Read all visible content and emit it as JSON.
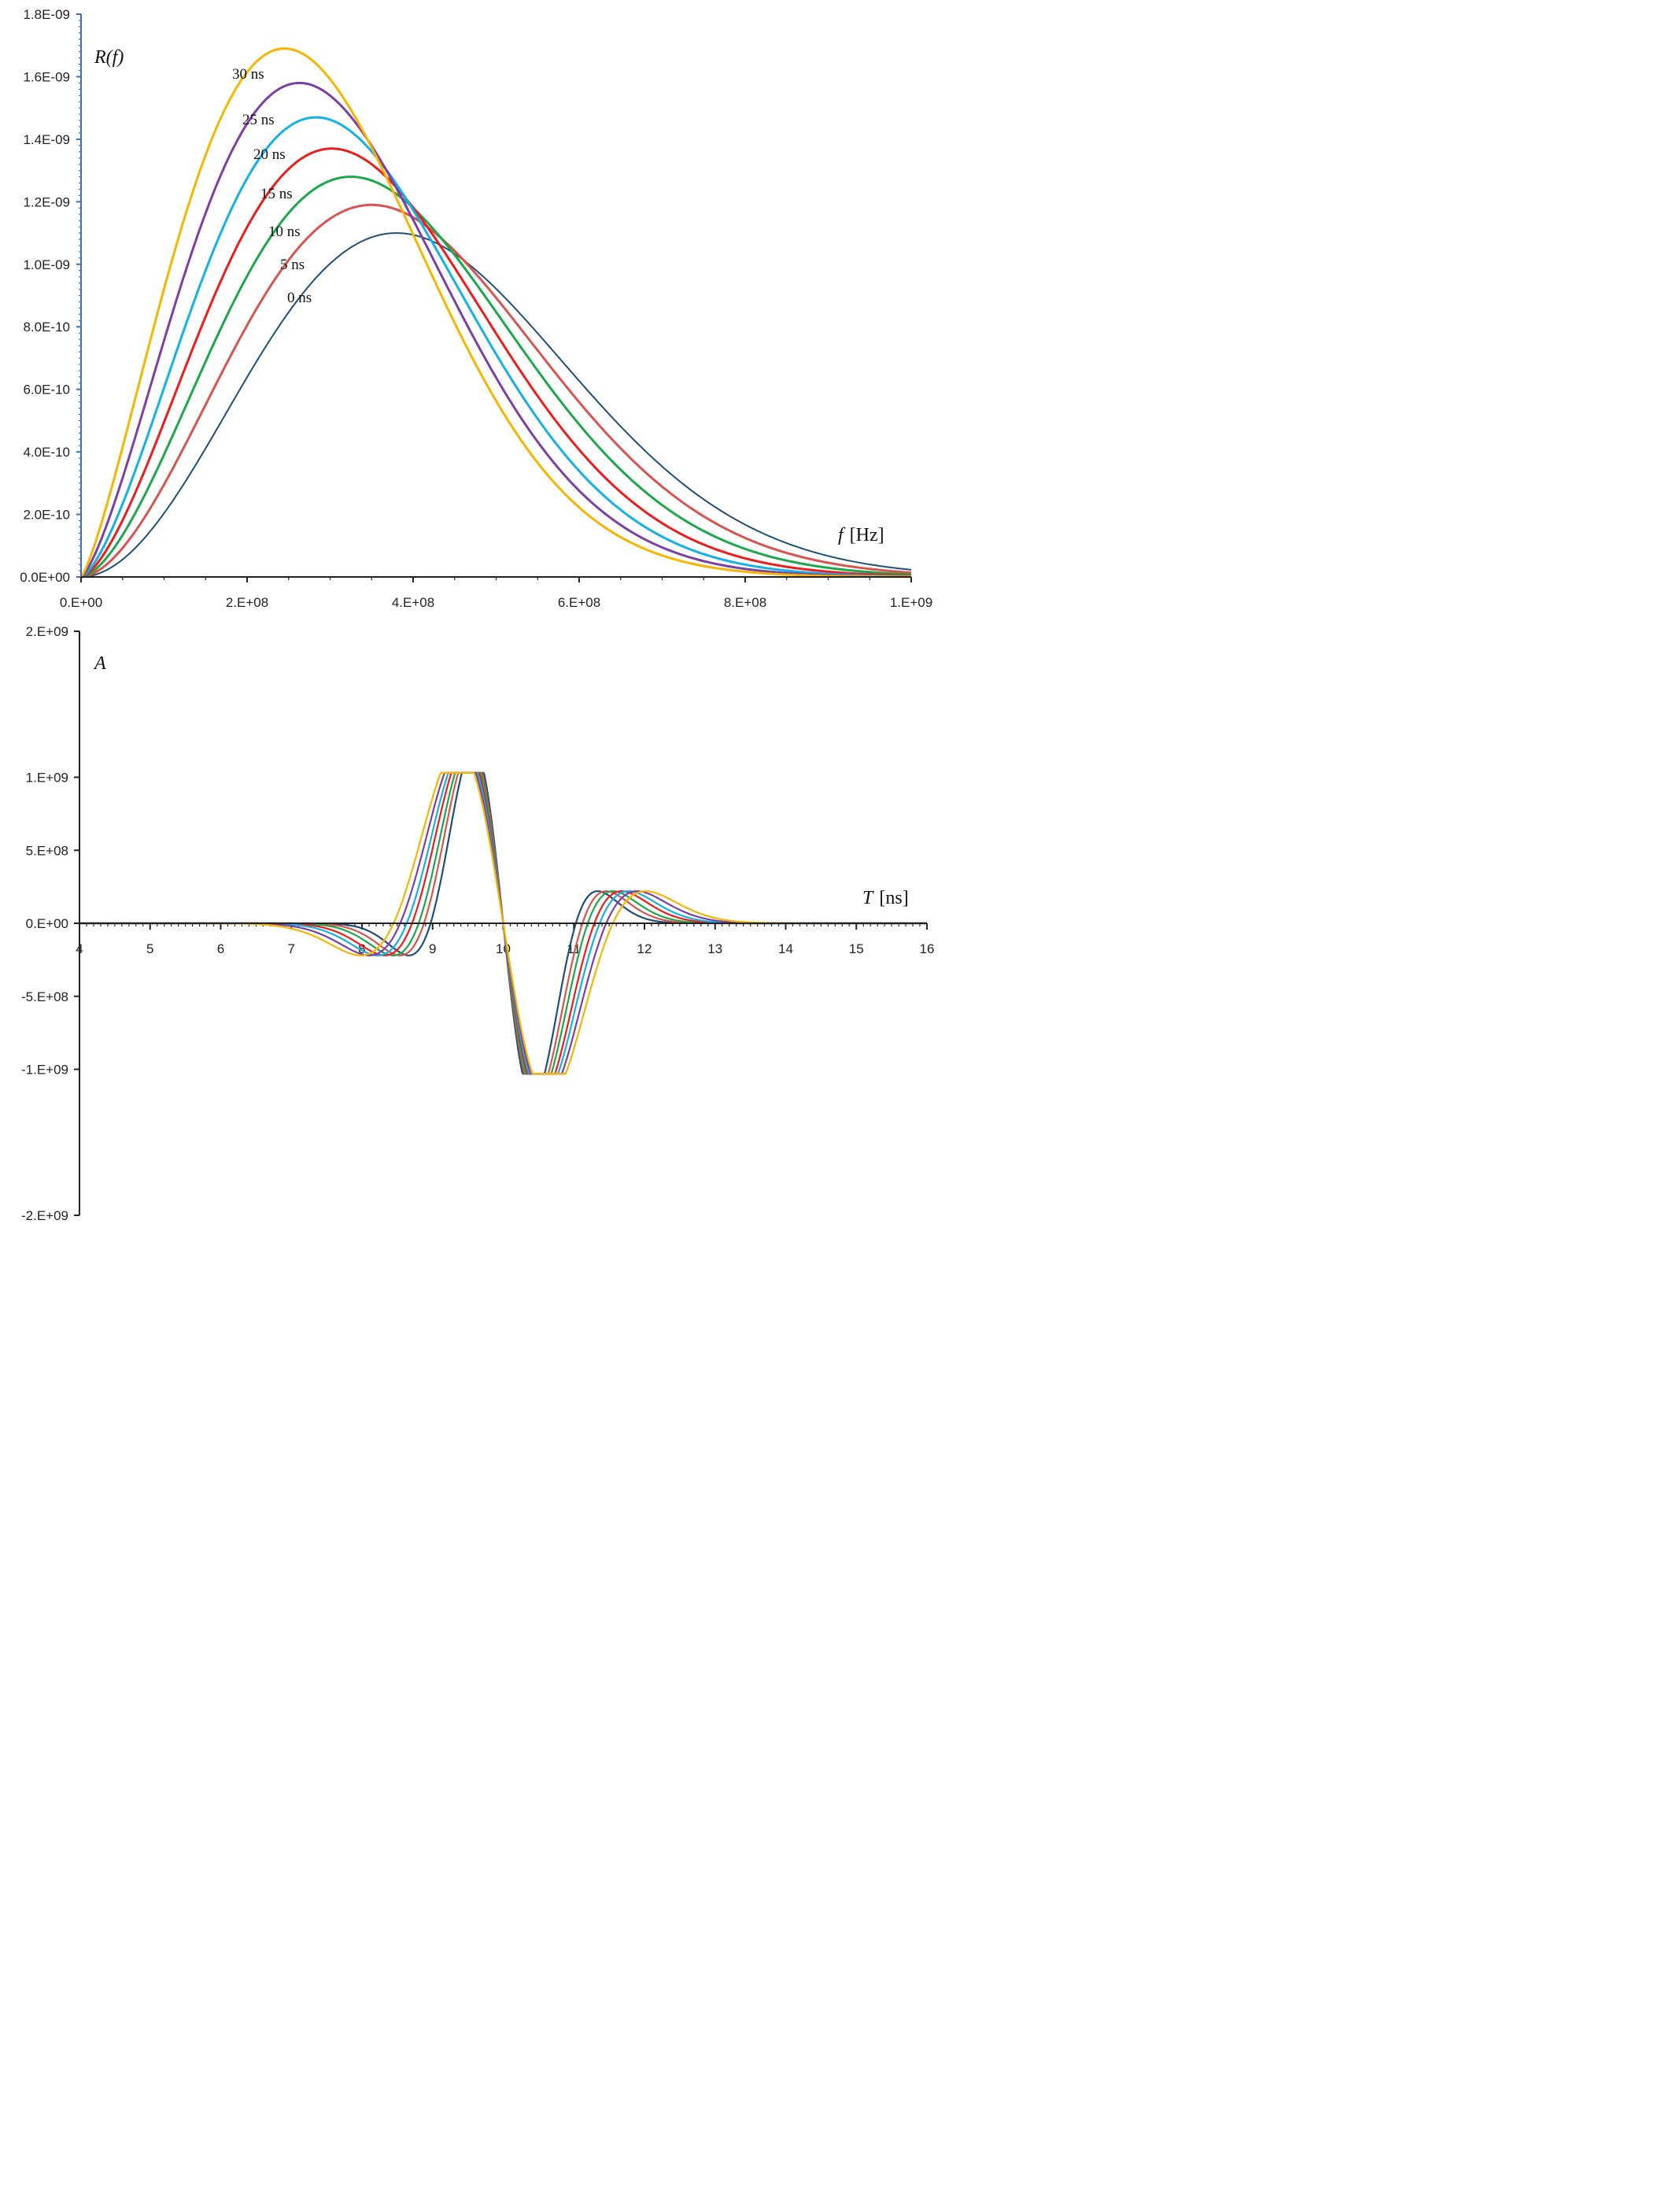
{
  "chart_data": [
    {
      "type": "line",
      "title": "",
      "ylabel": "R(f)",
      "xlabel": "f [Hz]",
      "xlabel_var": "f",
      "xlabel_unit": "[Hz]",
      "xlim": [
        0,
        1000000000
      ],
      "ylim": [
        0,
        1.8e-09
      ],
      "xticks": [
        "0.E+00",
        "2.E+08",
        "4.E+08",
        "6.E+08",
        "8.E+08",
        "1.E+09"
      ],
      "yticks": [
        "0.0E+00",
        "2.0E-10",
        "4.0E-10",
        "6.0E-10",
        "8.0E-10",
        "1.0E-09",
        "1.2E-09",
        "1.4E-09",
        "1.6E-09",
        "1.8E-09"
      ],
      "series": [
        {
          "name": "0 ns",
          "color": "#1f4e79",
          "peak_x": 380000000,
          "peak_y": 1.1e-09,
          "tail_1e9": 2.3e-11
        },
        {
          "name": "5 ns",
          "color": "#d9534f",
          "peak_x": 350000000,
          "peak_y": 1.19e-09,
          "tail_1e9": 1.4e-11
        },
        {
          "name": "10 ns",
          "color": "#1aa84a",
          "peak_x": 325000000,
          "peak_y": 1.28e-09,
          "tail_1e9": 8e-12
        },
        {
          "name": "15 ns",
          "color": "#ee1c1c",
          "peak_x": 302000000,
          "peak_y": 1.37e-09,
          "tail_1e9": 4e-12
        },
        {
          "name": "20 ns",
          "color": "#14b0e8",
          "peak_x": 283000000,
          "peak_y": 1.47e-09,
          "tail_1e9": 2e-12
        },
        {
          "name": "25 ns",
          "color": "#7b3fa6",
          "peak_x": 263000000,
          "peak_y": 1.58e-09,
          "tail_1e9": 1e-12
        },
        {
          "name": "30 ns",
          "color": "#f7b500",
          "peak_x": 245000000,
          "peak_y": 1.69e-09,
          "tail_1e9": 5e-13
        }
      ],
      "annotations": [
        "30 ns",
        "25 ns",
        "20 ns",
        "15 ns",
        "10 ns",
        "5 ns",
        "0 ns"
      ]
    },
    {
      "type": "line",
      "title": "",
      "ylabel": "A",
      "xlabel": "T [ns]",
      "xlabel_var": "T",
      "xlabel_unit": "[ns]",
      "xlim": [
        4,
        16
      ],
      "ylim": [
        -2000000000,
        2000000000
      ],
      "xticks": [
        "4",
        "5",
        "6",
        "7",
        "8",
        "9",
        "10",
        "11",
        "12",
        "13",
        "14",
        "15",
        "16"
      ],
      "yticks": [
        "2.E+09",
        "1.E+09",
        "5.E+08",
        "0.E+00",
        "-5.E+08",
        "-1.E+09",
        "-2.E+09"
      ],
      "amplitude": 1030000000,
      "center_t": 10,
      "series": [
        {
          "name": "0 ns",
          "color": "#1f4e79",
          "pulse_width": 0.55
        },
        {
          "name": "5 ns",
          "color": "#d9534f",
          "pulse_width": 0.6
        },
        {
          "name": "10 ns",
          "color": "#1aa84a",
          "pulse_width": 0.64
        },
        {
          "name": "15 ns",
          "color": "#ee1c1c",
          "pulse_width": 0.69
        },
        {
          "name": "20 ns",
          "color": "#14b0e8",
          "pulse_width": 0.73
        },
        {
          "name": "25 ns",
          "color": "#7b3fa6",
          "pulse_width": 0.78
        },
        {
          "name": "30 ns",
          "color": "#f7b500",
          "pulse_width": 0.83
        }
      ]
    }
  ]
}
